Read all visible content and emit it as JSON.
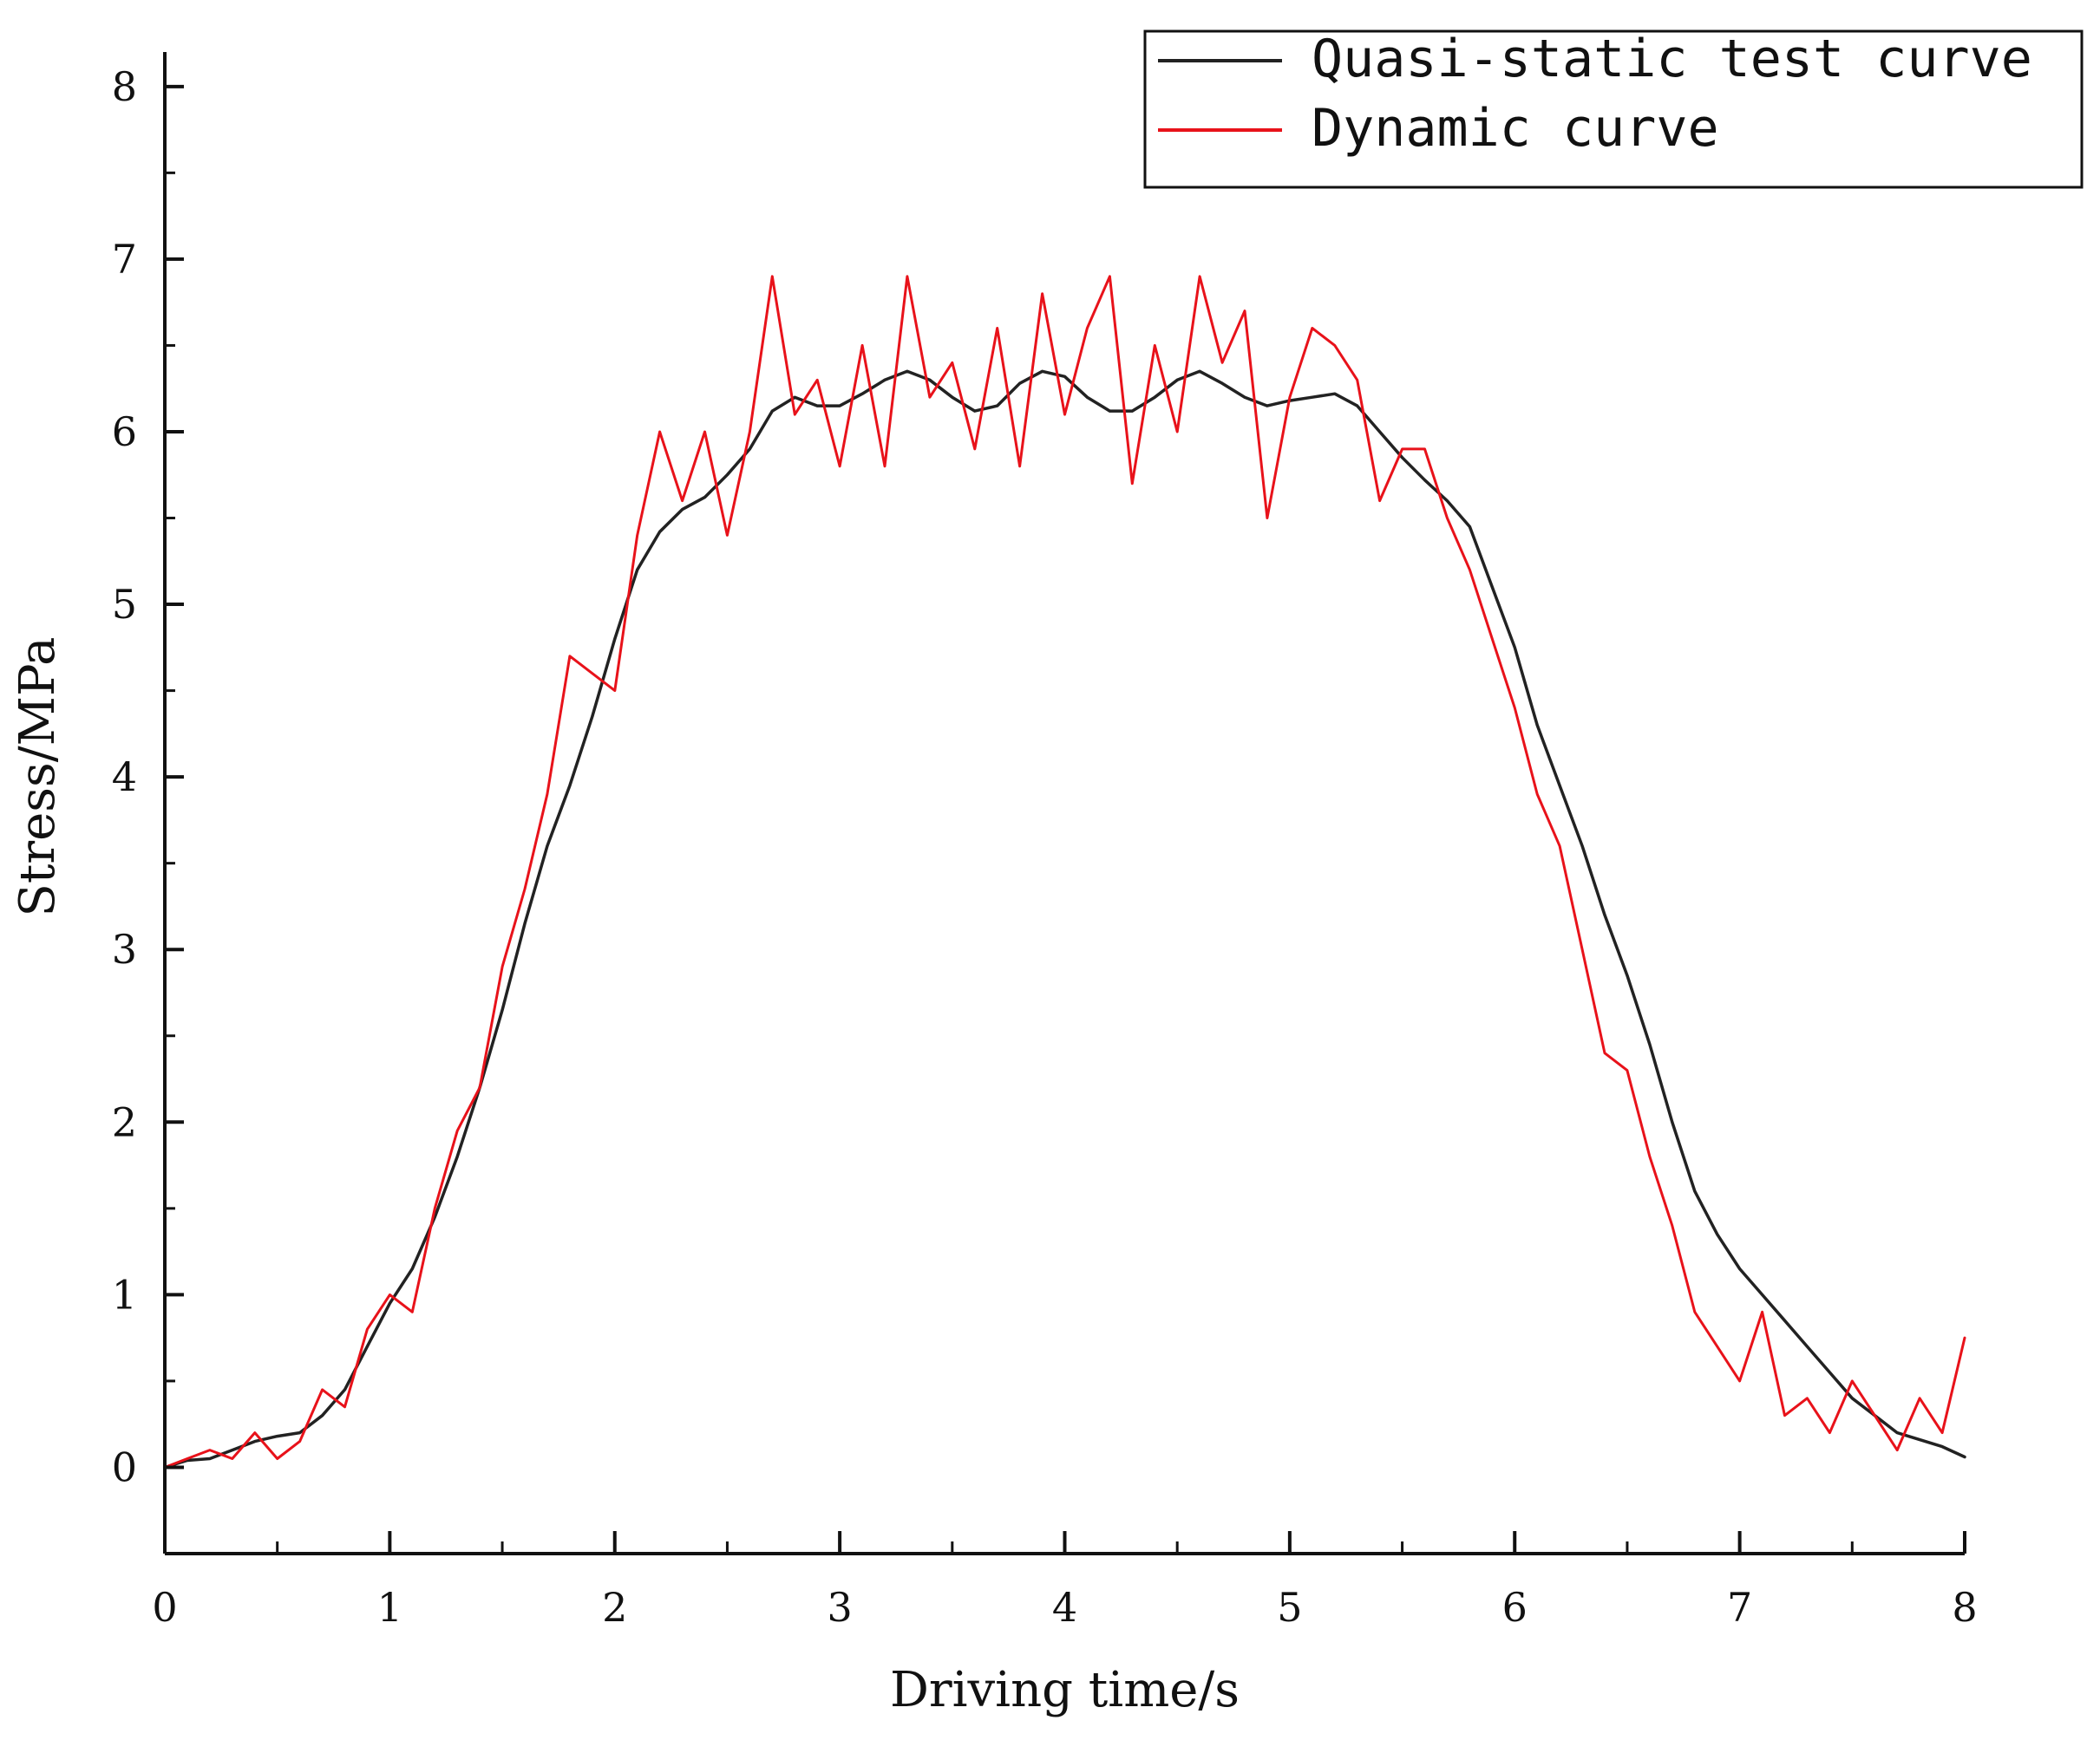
{
  "chart_data": {
    "type": "line",
    "title": "",
    "xlabel": "Driving time/s",
    "ylabel": "Stress/MPa",
    "xlim": [
      0,
      8
    ],
    "ylim": [
      -0.5,
      8.2
    ],
    "x_ticks": [
      0,
      1,
      2,
      3,
      4,
      5,
      6,
      7,
      8
    ],
    "y_ticks": [
      0,
      1,
      2,
      3,
      4,
      5,
      6,
      7,
      8
    ],
    "grid": false,
    "legend_position": "top-right",
    "series": [
      {
        "name": "Quasi-static test curve",
        "color": "#222222",
        "x": [
          0,
          0.1,
          0.2,
          0.3,
          0.4,
          0.5,
          0.6,
          0.7,
          0.8,
          0.9,
          1.0,
          1.1,
          1.2,
          1.3,
          1.4,
          1.5,
          1.6,
          1.7,
          1.8,
          1.9,
          2.0,
          2.1,
          2.2,
          2.3,
          2.4,
          2.5,
          2.6,
          2.7,
          2.8,
          2.9,
          3.0,
          3.1,
          3.2,
          3.3,
          3.4,
          3.5,
          3.6,
          3.7,
          3.8,
          3.9,
          4.0,
          4.1,
          4.2,
          4.3,
          4.4,
          4.5,
          4.6,
          4.7,
          4.8,
          4.9,
          5.0,
          5.1,
          5.2,
          5.3,
          5.4,
          5.5,
          5.6,
          5.7,
          5.8,
          5.9,
          6.0,
          6.1,
          6.2,
          6.3,
          6.4,
          6.5,
          6.6,
          6.7,
          6.8,
          6.9,
          7.0,
          7.1,
          7.2,
          7.3,
          7.4,
          7.5,
          7.6,
          7.7,
          7.8,
          7.9,
          8.0
        ],
        "y": [
          0.0,
          0.04,
          0.05,
          0.1,
          0.15,
          0.18,
          0.2,
          0.3,
          0.45,
          0.7,
          0.95,
          1.15,
          1.45,
          1.8,
          2.2,
          2.65,
          3.15,
          3.6,
          3.95,
          4.35,
          4.8,
          5.2,
          5.42,
          5.55,
          5.62,
          5.75,
          5.9,
          6.12,
          6.2,
          6.15,
          6.15,
          6.22,
          6.3,
          6.35,
          6.3,
          6.2,
          6.12,
          6.15,
          6.28,
          6.35,
          6.32,
          6.2,
          6.12,
          6.12,
          6.2,
          6.3,
          6.35,
          6.28,
          6.2,
          6.15,
          6.18,
          6.2,
          6.22,
          6.15,
          6.0,
          5.85,
          5.72,
          5.6,
          5.45,
          5.1,
          4.75,
          4.3,
          3.95,
          3.6,
          3.2,
          2.85,
          2.45,
          2.0,
          1.6,
          1.35,
          1.15,
          1.0,
          0.85,
          0.7,
          0.55,
          0.4,
          0.3,
          0.2,
          0.16,
          0.12,
          0.06
        ]
      },
      {
        "name": "Dynamic curve",
        "color": "#e8121a",
        "x": [
          0,
          0.1,
          0.2,
          0.3,
          0.4,
          0.5,
          0.6,
          0.7,
          0.8,
          0.9,
          1.0,
          1.1,
          1.2,
          1.3,
          1.4,
          1.5,
          1.6,
          1.7,
          1.8,
          1.9,
          2.0,
          2.1,
          2.2,
          2.3,
          2.4,
          2.5,
          2.6,
          2.7,
          2.8,
          2.9,
          3.0,
          3.1,
          3.2,
          3.3,
          3.4,
          3.5,
          3.6,
          3.7,
          3.8,
          3.9,
          4.0,
          4.1,
          4.2,
          4.3,
          4.4,
          4.5,
          4.6,
          4.7,
          4.8,
          4.9,
          5.0,
          5.1,
          5.2,
          5.3,
          5.4,
          5.5,
          5.6,
          5.7,
          5.8,
          5.9,
          6.0,
          6.1,
          6.2,
          6.3,
          6.4,
          6.5,
          6.6,
          6.7,
          6.8,
          6.9,
          7.0,
          7.1,
          7.2,
          7.3,
          7.4,
          7.5,
          7.6,
          7.7,
          7.8,
          7.9,
          8.0
        ],
        "y": [
          0.0,
          0.05,
          0.1,
          0.05,
          0.2,
          0.05,
          0.15,
          0.45,
          0.35,
          0.8,
          1.0,
          0.9,
          1.5,
          1.95,
          2.2,
          2.9,
          3.35,
          3.9,
          4.7,
          4.6,
          4.5,
          5.4,
          6.0,
          5.6,
          6.0,
          5.4,
          6.0,
          6.9,
          6.1,
          6.3,
          5.8,
          6.5,
          5.8,
          6.9,
          6.2,
          6.4,
          5.9,
          6.6,
          5.8,
          6.8,
          6.1,
          6.6,
          6.9,
          5.7,
          6.5,
          6.0,
          6.9,
          6.4,
          6.7,
          5.5,
          6.2,
          6.6,
          6.5,
          6.3,
          5.6,
          5.9,
          5.9,
          5.5,
          5.2,
          4.8,
          4.4,
          3.9,
          3.6,
          3.0,
          2.4,
          2.3,
          1.8,
          1.4,
          0.9,
          0.7,
          0.5,
          0.9,
          0.3,
          0.4,
          0.2,
          0.5,
          0.3,
          0.1,
          0.4,
          0.2,
          0.75
        ]
      }
    ]
  }
}
